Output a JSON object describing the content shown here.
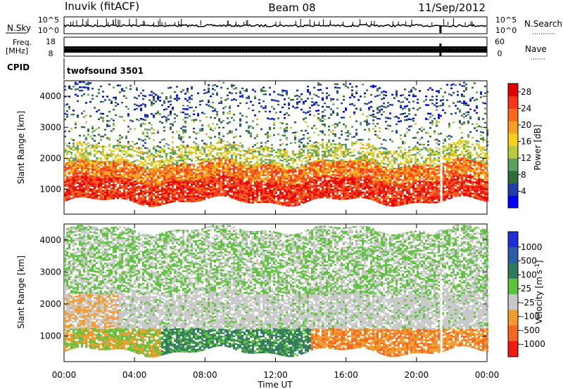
{
  "header": {
    "station": "Inuvik (fitACF)",
    "beam": "Beam 08",
    "date": "11/Sep/2012"
  },
  "top_panels": {
    "nsky_label": "N.Sky",
    "nsky_ticks": [
      "10^5",
      "10^0"
    ],
    "nsearch_label": "N.Search",
    "nsearch_ticks": [
      "10^5",
      "10^0"
    ],
    "freq_label": "Freq.",
    "freq_unit": "[MHz]",
    "freq_ticks": [
      "18",
      "8"
    ],
    "nave_label": "Nave",
    "nave_ticks": [
      "60",
      "0"
    ],
    "cpid_label": "CPID",
    "cpid_value": "twofsound 3501"
  },
  "chart_data": [
    {
      "type": "heatmap",
      "panel": "power",
      "ylabel": "Slant Range [km]",
      "xlabel": "",
      "x_tick_labels": [
        "00:00",
        "04:00",
        "08:00",
        "12:00",
        "16:00",
        "20:00",
        "00:00"
      ],
      "x_hours": [
        0,
        4,
        8,
        12,
        16,
        20,
        24
      ],
      "ylim": [
        200,
        4500
      ],
      "y_ticks": [
        1000,
        2000,
        3000,
        4000
      ],
      "colorbar": {
        "label": "Power [dB]",
        "tick_labels": [
          "28",
          "24",
          "20",
          "16",
          "12",
          "8",
          "4"
        ],
        "range": [
          0,
          30
        ],
        "colors": [
          "#0000ff",
          "#1e3ea8",
          "#2f6e3a",
          "#5ca060",
          "#b8cc3a",
          "#f7d21a",
          "#f8a020",
          "#f76a18",
          "#f5361a",
          "#e60000"
        ]
      },
      "bands": [
        {
          "range_km": [
            600,
            1300
          ],
          "level": 26
        },
        {
          "range_km": [
            1300,
            1800
          ],
          "level": 22
        },
        {
          "range_km": [
            1800,
            2400
          ],
          "level": 14
        },
        {
          "range_km": [
            2400,
            3300
          ],
          "level": 9
        },
        {
          "range_km": [
            3300,
            4300
          ],
          "level": 5
        }
      ]
    },
    {
      "type": "heatmap",
      "panel": "velocity",
      "ylabel": "Slant Range [km]",
      "xlabel": "Time UT",
      "x_tick_labels": [
        "00:00",
        "04:00",
        "08:00",
        "12:00",
        "16:00",
        "20:00",
        "00:00"
      ],
      "x_hours": [
        0,
        4,
        8,
        12,
        16,
        20,
        24
      ],
      "ylim": [
        200,
        4500
      ],
      "y_ticks": [
        1000,
        2000,
        3000,
        4000
      ],
      "colorbar": {
        "label": "Velocity [m s^-1]",
        "tick_labels": [
          "1000",
          "500",
          "100",
          "25",
          "-25",
          "-100",
          "-500",
          "-1000"
        ],
        "colors": [
          "#1e2fd8",
          "#2a5fa8",
          "#2f7a5a",
          "#5cc23a",
          "#c8c8c8",
          "#f49a2a",
          "#f5661e",
          "#f21a10"
        ]
      },
      "bands": [
        {
          "range_km": [
            500,
            1200
          ],
          "velocity": "-300"
        },
        {
          "range_km": [
            1200,
            2300
          ],
          "velocity": "0"
        },
        {
          "range_km": [
            2300,
            4300
          ],
          "velocity": "100"
        }
      ]
    }
  ]
}
